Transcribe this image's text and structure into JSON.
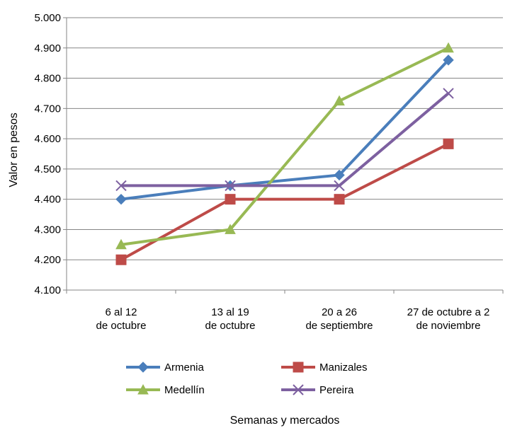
{
  "chart_data": {
    "type": "line",
    "title": "",
    "xlabel": "Semanas y mercados",
    "ylabel": "Valor en pesos",
    "ylim": [
      4100,
      5000
    ],
    "ytick_step": 100,
    "ytick_labels": [
      "4.100",
      "4.200",
      "4.300",
      "4.400",
      "4.500",
      "4.600",
      "4.700",
      "4.800",
      "4.900",
      "5.000"
    ],
    "grid": "horizontal",
    "legend_position": "bottom",
    "categories": [
      [
        "6 al 12",
        "de octubre"
      ],
      [
        "13 al 19",
        "de octubre"
      ],
      [
        "20 a 26",
        "de septiembre"
      ],
      [
        "27 de octubre a 2",
        "de noviembre"
      ]
    ],
    "series": [
      {
        "name": "Armenia",
        "color": "#4A7EBB",
        "marker": "diamond",
        "values": [
          4400,
          4445,
          4480,
          4860
        ]
      },
      {
        "name": "Manizales",
        "color": "#BE4B48",
        "marker": "square",
        "values": [
          4200,
          4400,
          4400,
          4583
        ]
      },
      {
        "name": "Medellín",
        "color": "#98B954",
        "marker": "triangle",
        "values": [
          4250,
          4300,
          4725,
          4900
        ]
      },
      {
        "name": "Pereira",
        "color": "#7D60A0",
        "marker": "x",
        "values": [
          4445,
          4445,
          4445,
          4750
        ]
      }
    ]
  }
}
